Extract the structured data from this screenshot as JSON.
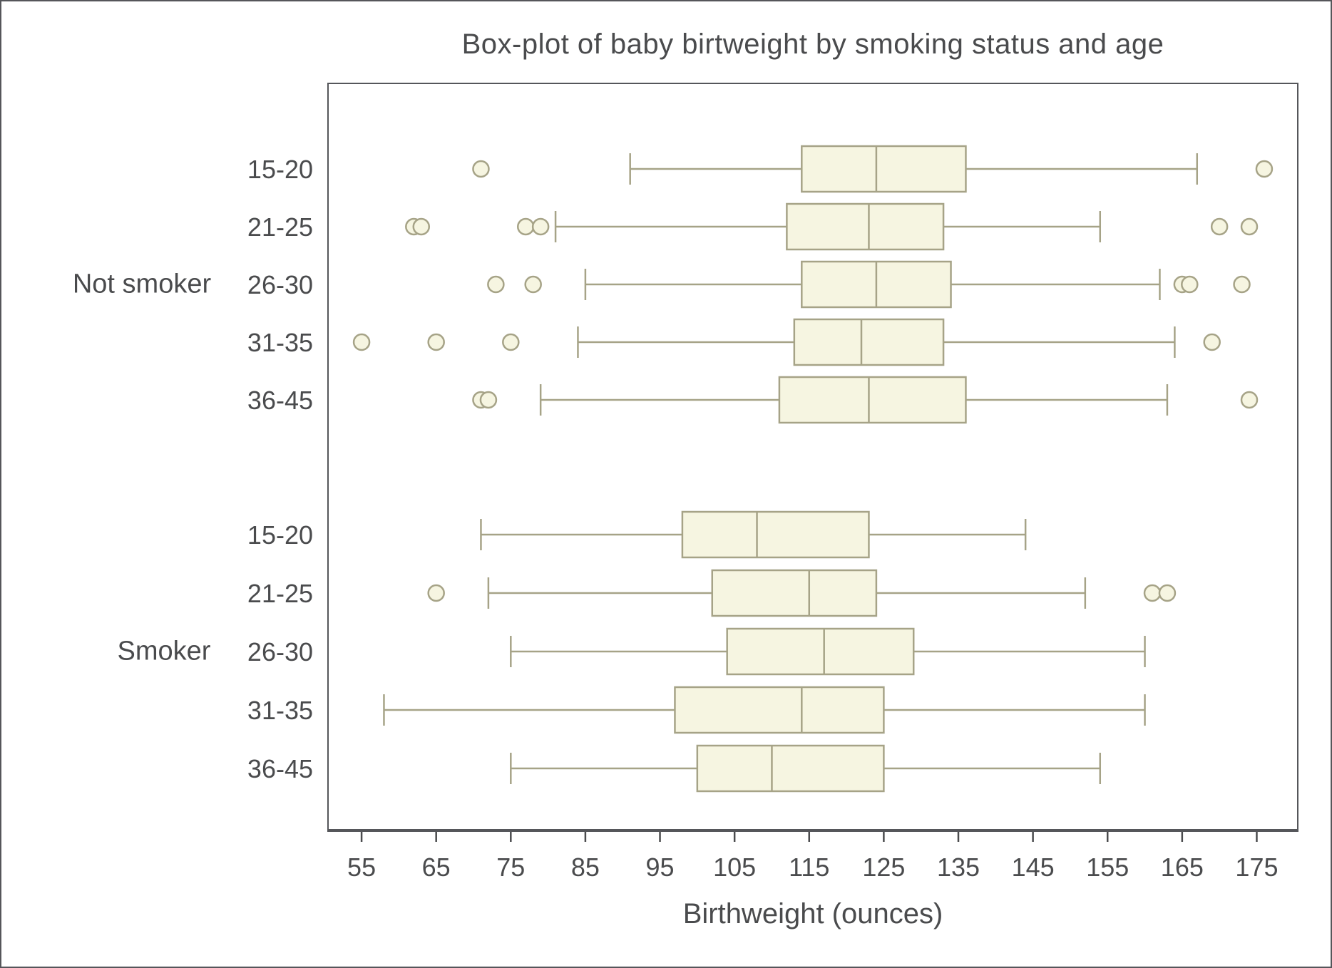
{
  "chart_data": {
    "type": "boxplot",
    "orientation": "horizontal",
    "title": "Box-plot of baby birtweight by smoking status and age",
    "xlabel": "Birthweight (ounces)",
    "ylabel": "",
    "xlim": [
      50.5,
      180.5
    ],
    "x_ticks": [
      55,
      65,
      75,
      85,
      95,
      105,
      115,
      125,
      135,
      145,
      155,
      165,
      175
    ],
    "grid": false,
    "legend_position": "none",
    "groups": [
      {
        "label": "Not smoker",
        "rows": [
          {
            "category": "15-20",
            "low": 91,
            "q1": 114,
            "median": 124,
            "q3": 136,
            "high": 167,
            "outliers": [
              71,
              176
            ]
          },
          {
            "category": "21-25",
            "low": 81,
            "q1": 112,
            "median": 123,
            "q3": 133,
            "high": 154,
            "outliers": [
              62,
              63,
              77,
              79,
              170,
              174
            ]
          },
          {
            "category": "26-30",
            "low": 85,
            "q1": 114,
            "median": 124,
            "q3": 134,
            "high": 162,
            "outliers": [
              73,
              78,
              165,
              166,
              173
            ]
          },
          {
            "category": "31-35",
            "low": 84,
            "q1": 113,
            "median": 122,
            "q3": 133,
            "high": 164,
            "outliers": [
              55,
              65,
              75,
              169
            ]
          },
          {
            "category": "36-45",
            "low": 79,
            "q1": 111,
            "median": 123,
            "q3": 136,
            "high": 163,
            "outliers": [
              71,
              72,
              174
            ]
          }
        ]
      },
      {
        "label": "Smoker",
        "rows": [
          {
            "category": "15-20",
            "low": 71,
            "q1": 98,
            "median": 108,
            "q3": 123,
            "high": 144,
            "outliers": []
          },
          {
            "category": "21-25",
            "low": 72,
            "q1": 102,
            "median": 115,
            "q3": 124,
            "high": 152,
            "outliers": [
              65,
              161,
              163
            ]
          },
          {
            "category": "26-30",
            "low": 75,
            "q1": 104,
            "median": 117,
            "q3": 129,
            "high": 160,
            "outliers": []
          },
          {
            "category": "31-35",
            "low": 58,
            "q1": 97,
            "median": 114,
            "q3": 125,
            "high": 160,
            "outliers": []
          },
          {
            "category": "36-45",
            "low": 75,
            "q1": 100,
            "median": 110,
            "q3": 125,
            "high": 154,
            "outliers": []
          }
        ]
      }
    ],
    "colors": {
      "box_fill": "#f6f5e1",
      "box_stroke": "#a6a387",
      "whisker": "#a6a387",
      "outlier_fill": "#f6f5e1",
      "outlier_stroke": "#a6a387",
      "frame": "#55565a",
      "text": "#4a4b4d",
      "background": "#ffffff"
    }
  }
}
